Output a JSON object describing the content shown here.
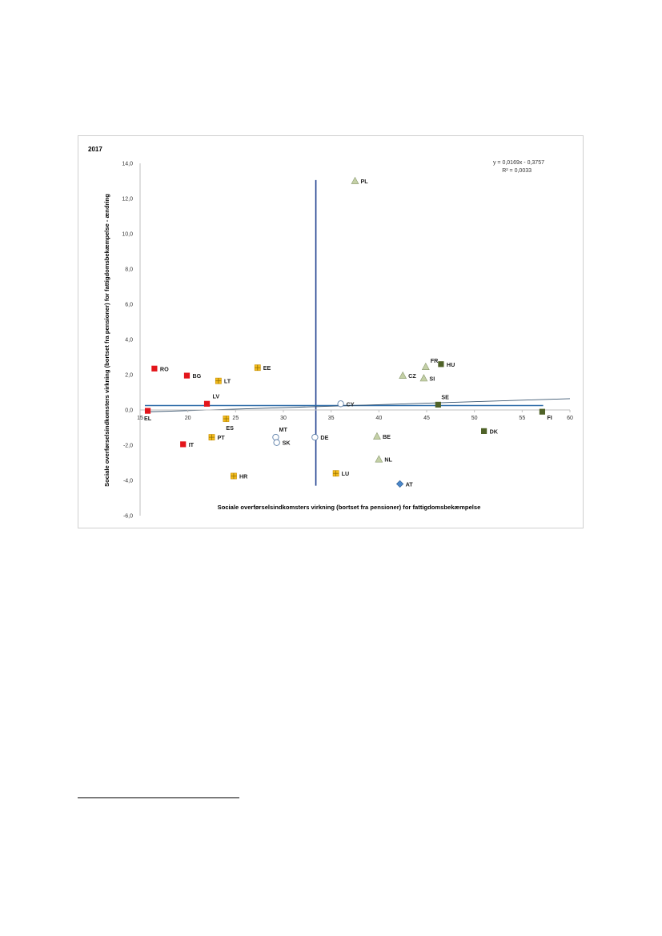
{
  "chart_data": {
    "type": "scatter",
    "title": "2017",
    "xlabel": "Sociale overførselsindkomsters virkning (bortset fra pensioner) for fattigdomsbekæmpelse",
    "ylabel": "Sociale overførselsindkomsters virkning (bortset fra pensioner) for fattigdomsbekæmpelse - ændring",
    "xlim": [
      15,
      60
    ],
    "ylim": [
      -6,
      14
    ],
    "x_ticks": [
      "15",
      "20",
      "25",
      "30",
      "35",
      "40",
      "45",
      "50",
      "55",
      "60"
    ],
    "y_ticks": [
      "-6,0",
      "-4,0",
      "-2,0",
      "0,0",
      "2,0",
      "4,0",
      "6,0",
      "8,0",
      "10,0",
      "12,0",
      "14,0"
    ],
    "grid": false,
    "trendline": {
      "equation": "y = 0,0169x - 0,3757",
      "r2": "R² = 0,0033",
      "slope": 0.0169,
      "intercept": -0.3757
    },
    "reference_lines": {
      "x_mean": 33.4,
      "y_mean": 0.25
    },
    "series": [
      {
        "marker": "square",
        "color": "#e3151b",
        "points": [
          {
            "label": "RO",
            "x": 16.5,
            "y": 2.35
          },
          {
            "label": "BG",
            "x": 19.9,
            "y": 1.95
          },
          {
            "label": "LV",
            "x": 22.0,
            "y": 0.35
          },
          {
            "label": "EL",
            "x": 15.8,
            "y": -0.05
          },
          {
            "label": "IT",
            "x": 19.5,
            "y": -1.95
          }
        ]
      },
      {
        "marker": "square-plus",
        "color": "#f2bb1c",
        "points": [
          {
            "label": "EE",
            "x": 27.3,
            "y": 2.4
          },
          {
            "label": "LT",
            "x": 23.2,
            "y": 1.65
          },
          {
            "label": "ES",
            "x": 24.0,
            "y": -0.5
          },
          {
            "label": "PT",
            "x": 22.5,
            "y": -1.55
          },
          {
            "label": "HR",
            "x": 24.8,
            "y": -3.75
          },
          {
            "label": "LU",
            "x": 35.5,
            "y": -3.6
          }
        ]
      },
      {
        "marker": "circle",
        "color": "#ffffff",
        "points": [
          {
            "label": "CY",
            "x": 36.0,
            "y": 0.35
          },
          {
            "label": "MT",
            "x": 29.2,
            "y": -1.55
          },
          {
            "label": "SK",
            "x": 29.3,
            "y": -1.85
          },
          {
            "label": "DE",
            "x": 33.3,
            "y": -1.55
          }
        ]
      },
      {
        "marker": "triangle",
        "color": "#c4d0a6",
        "points": [
          {
            "label": "PL",
            "x": 37.5,
            "y": 13.0
          },
          {
            "label": "FR",
            "x": 44.9,
            "y": 2.45
          },
          {
            "label": "CZ",
            "x": 42.5,
            "y": 1.95
          },
          {
            "label": "SI",
            "x": 44.7,
            "y": 1.8
          },
          {
            "label": "BE",
            "x": 39.8,
            "y": -1.5
          },
          {
            "label": "NL",
            "x": 40.0,
            "y": -2.8
          }
        ]
      },
      {
        "marker": "square",
        "color": "#4f6228",
        "points": [
          {
            "label": "HU",
            "x": 46.5,
            "y": 2.6
          },
          {
            "label": "SE",
            "x": 46.2,
            "y": 0.3
          },
          {
            "label": "DK",
            "x": 51.0,
            "y": -1.2
          },
          {
            "label": "FI",
            "x": 57.1,
            "y": -0.1
          }
        ]
      },
      {
        "marker": "diamond",
        "color": "#4a86c8",
        "points": [
          {
            "label": "AT",
            "x": 42.2,
            "y": -4.2
          }
        ]
      }
    ]
  }
}
